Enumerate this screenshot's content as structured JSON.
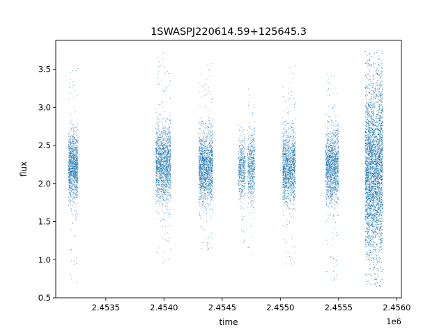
{
  "chart_data": {
    "type": "scatter",
    "title": "1SWASPJ220614.59+125645.3",
    "xlabel": "time",
    "ylabel": "flux",
    "x_offset_label": "1e6",
    "xlim": [
      2.45307,
      2.45604
    ],
    "ylim": [
      0.5,
      3.88
    ],
    "x_ticks": [
      2.4535,
      2.454,
      2.4545,
      2.455,
      2.4555,
      2.456
    ],
    "x_tick_labels": [
      "2.4535",
      "2.4540",
      "2.4545",
      "2.4550",
      "2.4555",
      "2.4560"
    ],
    "y_ticks": [
      0.5,
      1.0,
      1.5,
      2.0,
      2.5,
      3.0,
      3.5
    ],
    "y_tick_labels": [
      "0.5",
      "1.0",
      "1.5",
      "2.0",
      "2.5",
      "3.0",
      "3.5"
    ],
    "grid": false,
    "legend": false,
    "marker_color": "#1f77b4",
    "series": [
      {
        "clusters": [
          {
            "x_range": [
              2.45318,
              2.45326
            ],
            "center": 2.22,
            "spread": 0.22,
            "y_min": 0.7,
            "y_max": 3.55,
            "count": 1100
          },
          {
            "x_range": [
              2.45393,
              2.45406
            ],
            "center": 2.25,
            "spread": 0.24,
            "y_min": 0.95,
            "y_max": 3.72,
            "count": 1500
          },
          {
            "x_range": [
              2.4543,
              2.45442
            ],
            "center": 2.22,
            "spread": 0.23,
            "y_min": 1.1,
            "y_max": 3.58,
            "count": 1500
          },
          {
            "x_range": [
              2.45464,
              2.4547
            ],
            "center": 2.2,
            "spread": 0.2,
            "y_min": 1.2,
            "y_max": 2.78,
            "count": 450
          },
          {
            "x_range": [
              2.45472,
              2.45478
            ],
            "center": 2.2,
            "spread": 0.22,
            "y_min": 1.05,
            "y_max": 3.3,
            "count": 500
          },
          {
            "x_range": [
              2.45502,
              2.45513
            ],
            "center": 2.22,
            "spread": 0.23,
            "y_min": 0.9,
            "y_max": 3.55,
            "count": 1300
          },
          {
            "x_range": [
              2.45539,
              2.4555
            ],
            "center": 2.22,
            "spread": 0.24,
            "y_min": 0.7,
            "y_max": 3.5,
            "count": 1300
          },
          {
            "x_range": [
              2.45573,
              2.45588
            ],
            "center": 2.2,
            "spread": 0.55,
            "y_min": 0.65,
            "y_max": 3.75,
            "count": 4200
          }
        ]
      }
    ]
  }
}
